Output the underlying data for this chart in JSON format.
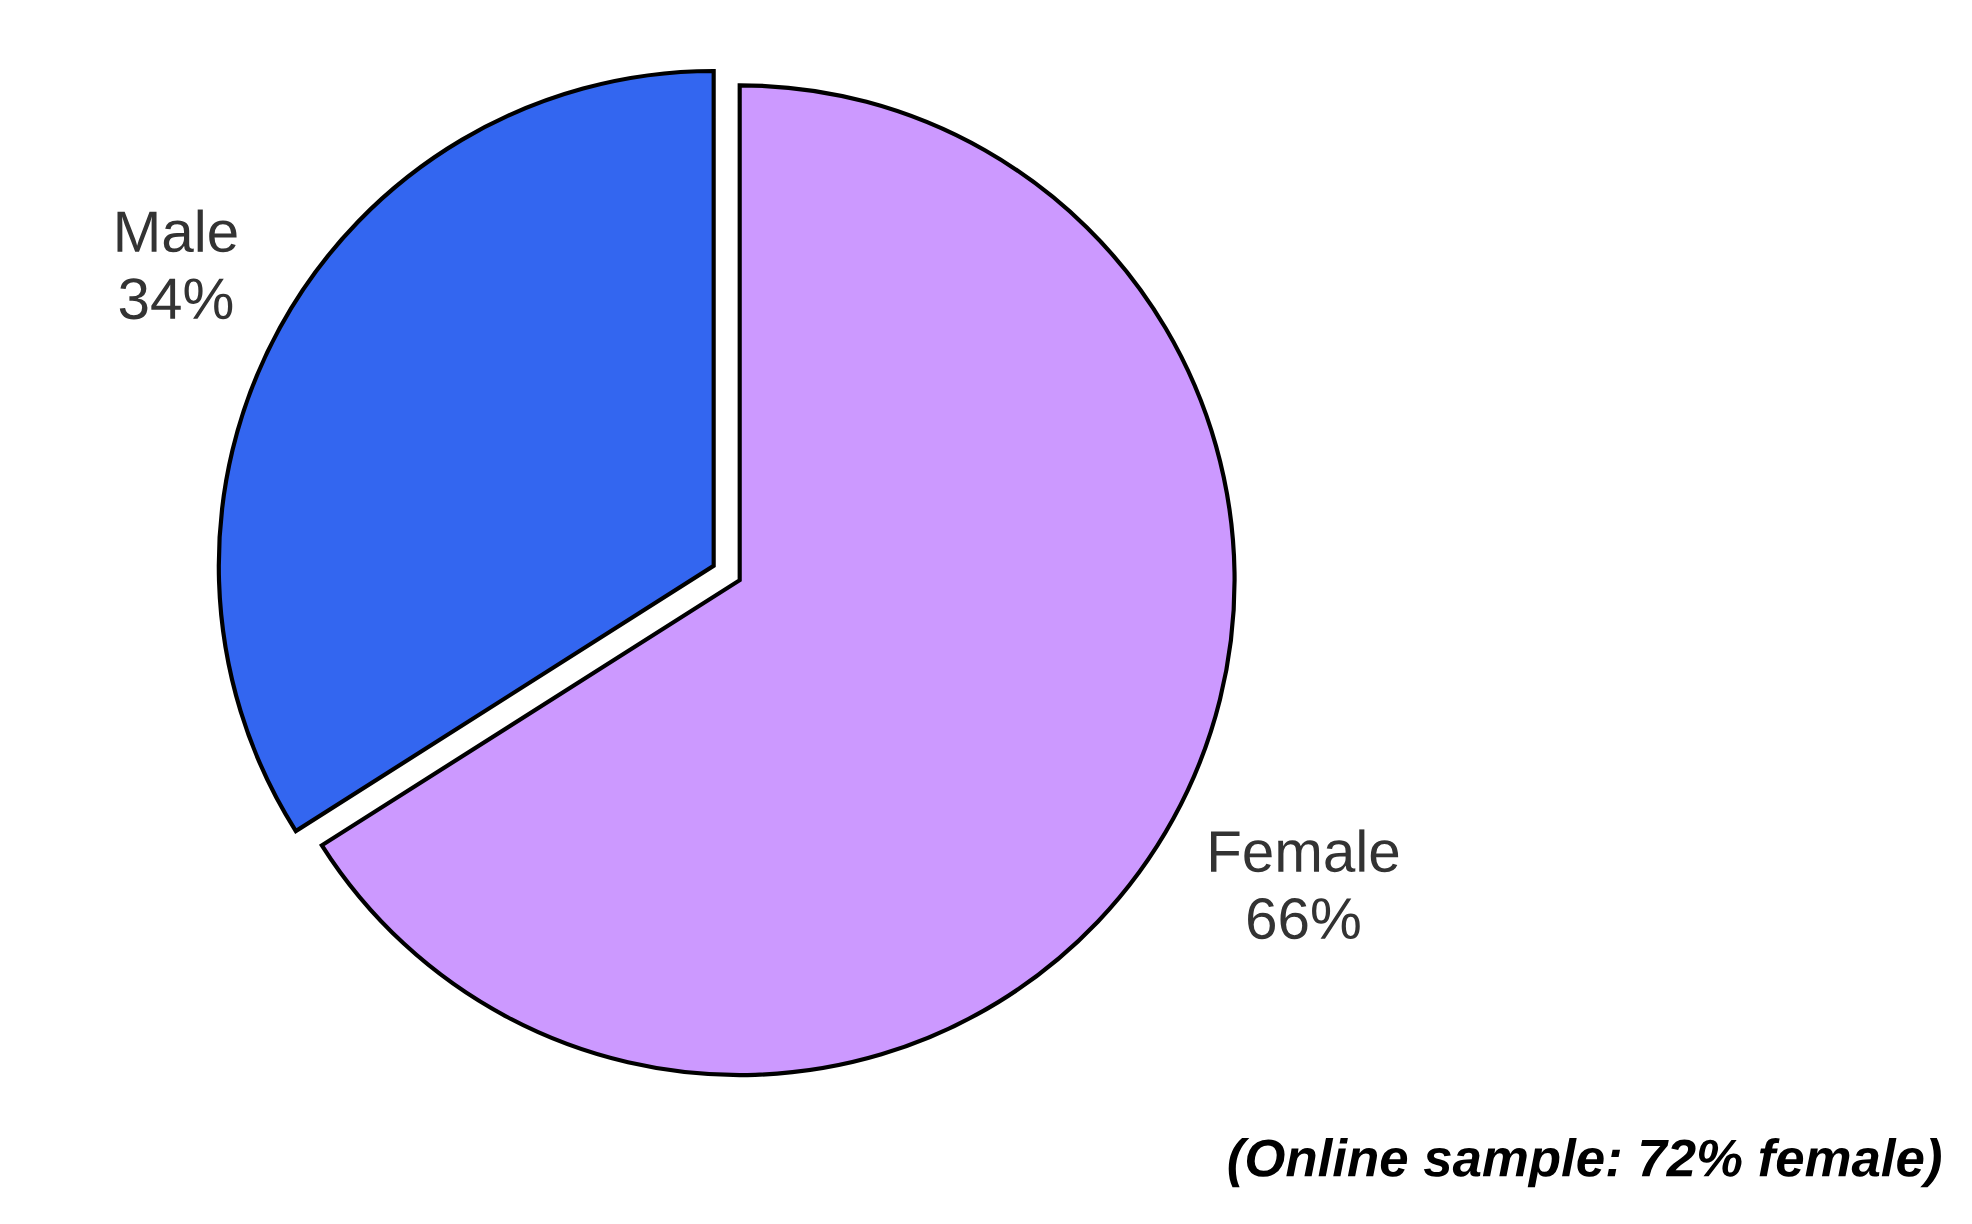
{
  "chart_data": {
    "type": "pie",
    "categories": [
      "Male",
      "Female"
    ],
    "values": [
      34,
      66
    ],
    "colors": [
      "#3366f0",
      "#cc99ff"
    ],
    "value_labels": [
      "34%",
      "66%"
    ],
    "annotations": [
      "(Online sample: 72% female)"
    ]
  }
}
